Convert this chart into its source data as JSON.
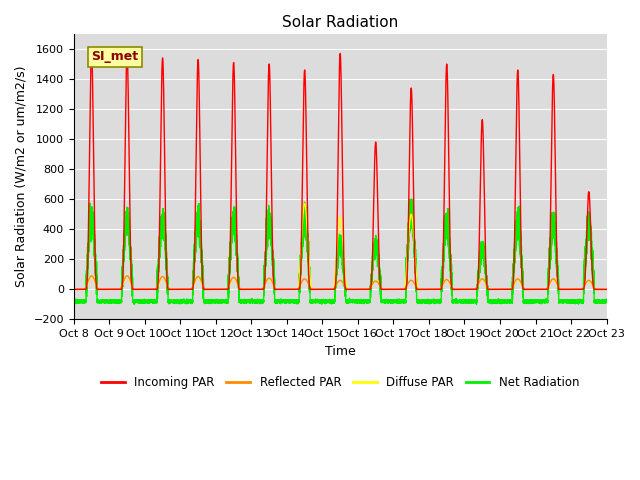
{
  "title": "Solar Radiation",
  "ylabel": "Solar Radiation (W/m2 or um/m2/s)",
  "xlabel": "Time",
  "ylim": [
    -200,
    1700
  ],
  "yticks": [
    -200,
    0,
    200,
    400,
    600,
    800,
    1000,
    1200,
    1400,
    1600
  ],
  "label_text": "SI_met",
  "series_colors": {
    "incoming": "#FF0000",
    "reflected": "#FF8C00",
    "diffuse": "#FFFF00",
    "net": "#00EE00"
  },
  "series_labels": [
    "Incoming PAR",
    "Reflected PAR",
    "Diffuse PAR",
    "Net Radiation"
  ],
  "n_days": 15,
  "start_day": 8,
  "axes_background": "#DCDCDC",
  "fig_background": "#FFFFFF",
  "peak_incoming": [
    1580,
    1560,
    1540,
    1530,
    1510,
    1500,
    1460,
    1570,
    980,
    1340,
    1500,
    1130,
    1460,
    1430,
    650
  ],
  "peak_reflected": [
    90,
    90,
    85,
    85,
    80,
    75,
    70,
    60,
    55,
    60,
    65,
    70,
    70,
    70,
    60
  ],
  "peak_diffuse": [
    90,
    90,
    85,
    85,
    80,
    75,
    570,
    480,
    60,
    500,
    65,
    70,
    70,
    70,
    60
  ],
  "peak_net": [
    460,
    450,
    450,
    460,
    450,
    460,
    470,
    310,
    295,
    510,
    440,
    260,
    440,
    430,
    420
  ],
  "night_net": -80,
  "grid_color": "#FFFFFF",
  "line_width": 1.0,
  "font_size": 9,
  "tick_label_size": 8,
  "title_fontsize": 11
}
